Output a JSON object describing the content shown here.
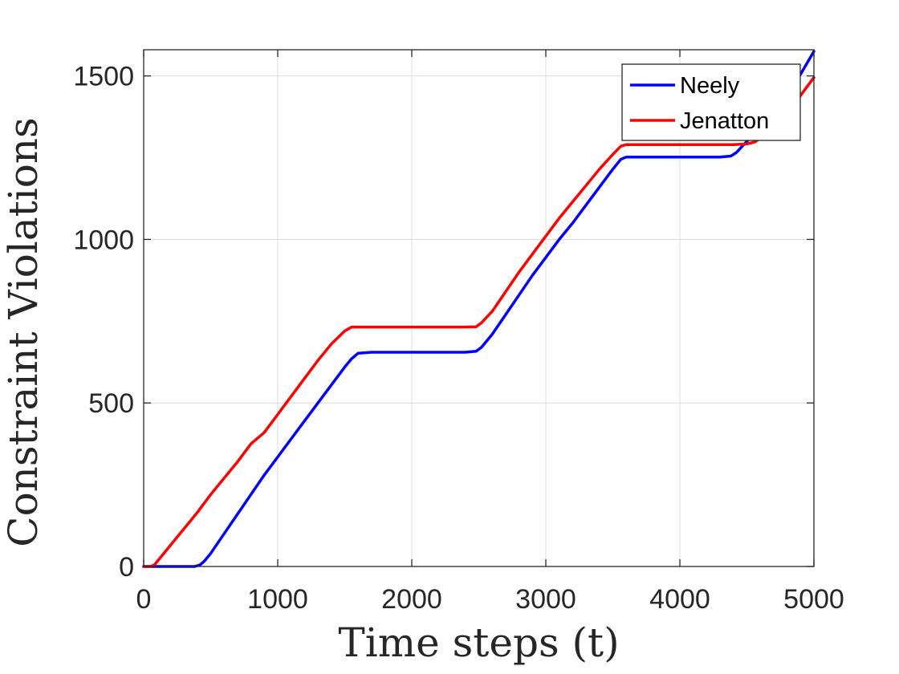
{
  "chart_data": {
    "type": "line",
    "title": "",
    "xlabel": "Time steps (t)",
    "ylabel": "Constraint Violations",
    "xlim": [
      0,
      5000
    ],
    "ylim": [
      0,
      1580
    ],
    "xticks": [
      0,
      1000,
      2000,
      3000,
      4000,
      5000
    ],
    "yticks": [
      0,
      500,
      1000,
      1500
    ],
    "xtick_labels": [
      "0",
      "1000",
      "2000",
      "3000",
      "4000",
      "5000"
    ],
    "ytick_labels": [
      "0",
      "500",
      "1000",
      "1500"
    ],
    "grid": true,
    "legend_position": "top-right",
    "series": [
      {
        "name": "Neely",
        "color": "#0000ff",
        "x": [
          0,
          100,
          200,
          300,
          380,
          420,
          450,
          500,
          600,
          700,
          800,
          900,
          1000,
          1100,
          1200,
          1300,
          1400,
          1500,
          1550,
          1600,
          1700,
          1800,
          1900,
          2000,
          2100,
          2200,
          2300,
          2400,
          2480,
          2520,
          2600,
          2700,
          2800,
          2900,
          3000,
          3100,
          3200,
          3300,
          3400,
          3500,
          3560,
          3600,
          3700,
          3800,
          3900,
          4000,
          4100,
          4200,
          4300,
          4380,
          4420,
          4500,
          4600,
          4700,
          4800,
          4900,
          5000
        ],
        "y": [
          0,
          0,
          0,
          0,
          0,
          5,
          15,
          40,
          100,
          160,
          220,
          280,
          335,
          390,
          445,
          500,
          555,
          610,
          635,
          652,
          655,
          655,
          655,
          655,
          655,
          655,
          655,
          655,
          658,
          670,
          710,
          770,
          830,
          890,
          945,
          1000,
          1050,
          1105,
          1160,
          1215,
          1245,
          1252,
          1252,
          1252,
          1252,
          1252,
          1252,
          1252,
          1252,
          1255,
          1265,
          1300,
          1340,
          1390,
          1440,
          1505,
          1575
        ]
      },
      {
        "name": "Jenatton",
        "color": "#ff0000",
        "x": [
          0,
          50,
          80,
          100,
          150,
          200,
          300,
          400,
          500,
          600,
          700,
          800,
          900,
          1000,
          1100,
          1200,
          1300,
          1400,
          1500,
          1550,
          1600,
          1700,
          1800,
          1900,
          2000,
          2100,
          2200,
          2300,
          2400,
          2480,
          2520,
          2600,
          2700,
          2800,
          2900,
          3000,
          3100,
          3200,
          3300,
          3400,
          3500,
          3560,
          3600,
          3700,
          3800,
          3900,
          4000,
          4100,
          4200,
          4300,
          4400,
          4500,
          4560,
          4600,
          4700,
          4800,
          4900,
          5000
        ],
        "y": [
          0,
          0,
          5,
          15,
          40,
          65,
          115,
          165,
          220,
          270,
          320,
          375,
          410,
          465,
          520,
          575,
          630,
          680,
          720,
          732,
          732,
          732,
          732,
          732,
          732,
          732,
          732,
          732,
          732,
          733,
          745,
          780,
          840,
          900,
          955,
          1010,
          1065,
          1115,
          1165,
          1215,
          1260,
          1285,
          1290,
          1290,
          1290,
          1290,
          1290,
          1290,
          1290,
          1290,
          1290,
          1292,
          1298,
          1310,
          1340,
          1380,
          1440,
          1495
        ]
      }
    ]
  }
}
